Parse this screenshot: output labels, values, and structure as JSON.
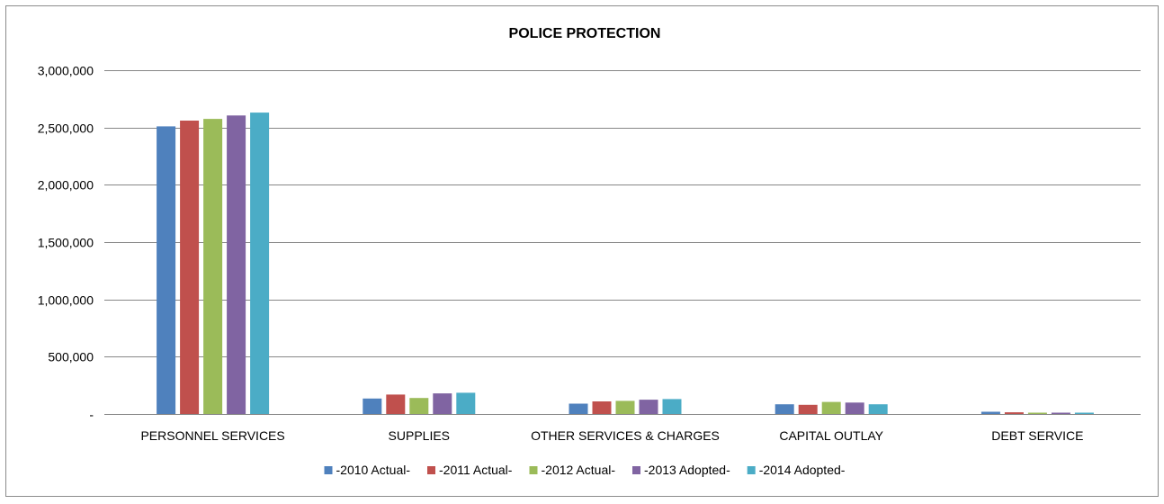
{
  "chart_data": {
    "type": "bar",
    "title": "POLICE PROTECTION",
    "xlabel": "",
    "ylabel": "",
    "ylim": [
      0,
      3000000
    ],
    "y_ticks": [
      0,
      500000,
      1000000,
      1500000,
      2000000,
      2500000,
      3000000
    ],
    "y_tick_labels": [
      "-",
      "500,000",
      "1,000,000",
      "1,500,000",
      "2,000,000",
      "2,500,000",
      "3,000,000"
    ],
    "grid": true,
    "legend_position": "bottom",
    "categories": [
      "PERSONNEL SERVICES",
      "SUPPLIES",
      "OTHER SERVICES & CHARGES",
      "CAPITAL OUTLAY",
      "DEBT SERVICE"
    ],
    "series": [
      {
        "name": "-2010 Actual-",
        "color": "#4f81bd",
        "values": [
          2510000,
          135000,
          90000,
          85000,
          20000
        ]
      },
      {
        "name": "-2011 Actual-",
        "color": "#c0504d",
        "values": [
          2560000,
          170000,
          110000,
          80000,
          15000
        ]
      },
      {
        "name": "-2012 Actual-",
        "color": "#9bbb59",
        "values": [
          2575000,
          140000,
          115000,
          105000,
          12000
        ]
      },
      {
        "name": "-2013 Adopted-",
        "color": "#8064a2",
        "values": [
          2605000,
          180000,
          125000,
          100000,
          12000
        ]
      },
      {
        "name": "-2014 Adopted-",
        "color": "#4bacc6",
        "values": [
          2630000,
          185000,
          130000,
          85000,
          12000
        ]
      }
    ]
  }
}
